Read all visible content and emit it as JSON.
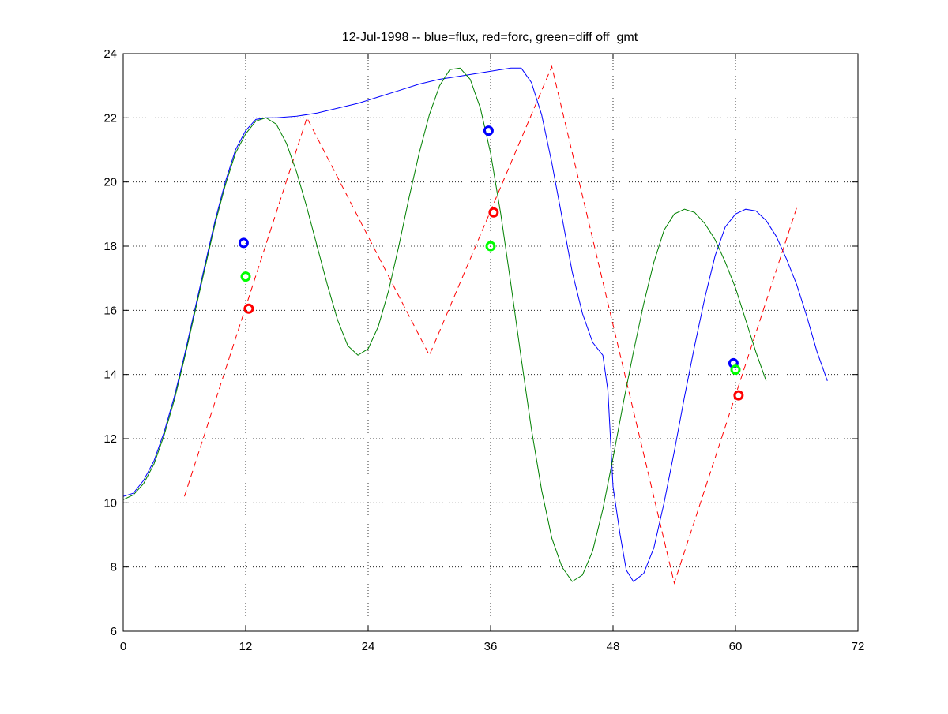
{
  "chart_data": {
    "type": "line",
    "title": "12-Jul-1998 -- blue=flux, red=forc, green=diff off_gmt",
    "xlabel": "",
    "ylabel": "",
    "xlim": [
      0,
      72
    ],
    "ylim": [
      6,
      24
    ],
    "xticks": [
      0,
      12,
      24,
      36,
      48,
      60,
      72
    ],
    "yticks": [
      6,
      8,
      10,
      12,
      14,
      16,
      18,
      20,
      22,
      24
    ],
    "grid": true,
    "series": [
      {
        "color": "#0000ff",
        "style": "solid",
        "points": [
          [
            0,
            10.2
          ],
          [
            1,
            10.3
          ],
          [
            2,
            10.7
          ],
          [
            3,
            11.3
          ],
          [
            4,
            12.2
          ],
          [
            5,
            13.3
          ],
          [
            6,
            14.6
          ],
          [
            7,
            16.0
          ],
          [
            8,
            17.4
          ],
          [
            9,
            18.8
          ],
          [
            10,
            20.0
          ],
          [
            11,
            21.0
          ],
          [
            12,
            21.6
          ],
          [
            13,
            21.95
          ],
          [
            14,
            22.0
          ],
          [
            15,
            22.0
          ],
          [
            17,
            22.05
          ],
          [
            19,
            22.15
          ],
          [
            21,
            22.3
          ],
          [
            23,
            22.45
          ],
          [
            25,
            22.65
          ],
          [
            27,
            22.85
          ],
          [
            29,
            23.05
          ],
          [
            31,
            23.2
          ],
          [
            33,
            23.3
          ],
          [
            35,
            23.4
          ],
          [
            37,
            23.5
          ],
          [
            38,
            23.55
          ],
          [
            39,
            23.55
          ],
          [
            40,
            23.1
          ],
          [
            41,
            22.1
          ],
          [
            42,
            20.6
          ],
          [
            43,
            18.9
          ],
          [
            44,
            17.2
          ],
          [
            45,
            15.9
          ],
          [
            46,
            15.0
          ],
          [
            47,
            14.6
          ],
          [
            47.5,
            13.5
          ],
          [
            48,
            10.5
          ],
          [
            48.7,
            9.0
          ],
          [
            49.3,
            7.9
          ],
          [
            50,
            7.55
          ],
          [
            51,
            7.8
          ],
          [
            52,
            8.6
          ],
          [
            53,
            10.0
          ],
          [
            54,
            11.6
          ],
          [
            55,
            13.3
          ],
          [
            56,
            14.9
          ],
          [
            57,
            16.4
          ],
          [
            58,
            17.7
          ],
          [
            59,
            18.6
          ],
          [
            60,
            19.0
          ],
          [
            61,
            19.15
          ],
          [
            62,
            19.1
          ],
          [
            63,
            18.8
          ],
          [
            64,
            18.3
          ],
          [
            65,
            17.6
          ],
          [
            66,
            16.8
          ],
          [
            67,
            15.8
          ],
          [
            68,
            14.7
          ],
          [
            69,
            13.8
          ]
        ]
      },
      {
        "color": "#ff0000",
        "style": "dashed",
        "points": [
          [
            6,
            10.2
          ],
          [
            18,
            22.0
          ],
          [
            30,
            14.6
          ],
          [
            42,
            23.6
          ],
          [
            54,
            7.5
          ],
          [
            66,
            19.2
          ]
        ]
      },
      {
        "color": "#008000",
        "style": "solid",
        "points": [
          [
            0,
            10.1
          ],
          [
            1,
            10.25
          ],
          [
            2,
            10.6
          ],
          [
            3,
            11.2
          ],
          [
            4,
            12.1
          ],
          [
            5,
            13.2
          ],
          [
            6,
            14.5
          ],
          [
            7,
            15.9
          ],
          [
            8,
            17.3
          ],
          [
            9,
            18.7
          ],
          [
            10,
            19.9
          ],
          [
            11,
            20.9
          ],
          [
            12,
            21.5
          ],
          [
            13,
            21.9
          ],
          [
            14,
            22.0
          ],
          [
            15,
            21.8
          ],
          [
            16,
            21.2
          ],
          [
            17,
            20.3
          ],
          [
            18,
            19.2
          ],
          [
            19,
            18.0
          ],
          [
            20,
            16.8
          ],
          [
            21,
            15.7
          ],
          [
            22,
            14.9
          ],
          [
            23,
            14.6
          ],
          [
            24,
            14.8
          ],
          [
            25,
            15.5
          ],
          [
            26,
            16.6
          ],
          [
            27,
            18.0
          ],
          [
            28,
            19.5
          ],
          [
            29,
            20.9
          ],
          [
            30,
            22.1
          ],
          [
            31,
            23.0
          ],
          [
            32,
            23.5
          ],
          [
            33,
            23.55
          ],
          [
            34,
            23.2
          ],
          [
            35,
            22.3
          ],
          [
            36,
            20.9
          ],
          [
            37,
            19.0
          ],
          [
            38,
            16.8
          ],
          [
            39,
            14.5
          ],
          [
            40,
            12.3
          ],
          [
            41,
            10.4
          ],
          [
            42,
            8.9
          ],
          [
            43,
            8.0
          ],
          [
            44,
            7.55
          ],
          [
            45,
            7.75
          ],
          [
            46,
            8.5
          ],
          [
            47,
            9.8
          ],
          [
            48,
            11.4
          ],
          [
            49,
            13.1
          ],
          [
            50,
            14.7
          ],
          [
            51,
            16.2
          ],
          [
            52,
            17.5
          ],
          [
            53,
            18.5
          ],
          [
            54,
            19.0
          ],
          [
            55,
            19.15
          ],
          [
            56,
            19.05
          ],
          [
            57,
            18.7
          ],
          [
            58,
            18.2
          ],
          [
            59,
            17.5
          ],
          [
            60,
            16.7
          ],
          [
            61,
            15.7
          ],
          [
            62,
            14.7
          ],
          [
            63,
            13.8
          ]
        ]
      }
    ],
    "markers": [
      {
        "color": "#0000ff",
        "x": 11.8,
        "y": 18.1
      },
      {
        "color": "#00ff00",
        "x": 12.0,
        "y": 17.05
      },
      {
        "color": "#ff0000",
        "x": 12.3,
        "y": 16.05
      },
      {
        "color": "#0000ff",
        "x": 35.8,
        "y": 21.6
      },
      {
        "color": "#ff0000",
        "x": 36.3,
        "y": 19.05
      },
      {
        "color": "#00ff00",
        "x": 36.0,
        "y": 18.0
      },
      {
        "color": "#0000ff",
        "x": 59.8,
        "y": 14.35
      },
      {
        "color": "#00ff00",
        "x": 60.0,
        "y": 14.15
      },
      {
        "color": "#ff0000",
        "x": 60.3,
        "y": 13.35
      }
    ]
  }
}
